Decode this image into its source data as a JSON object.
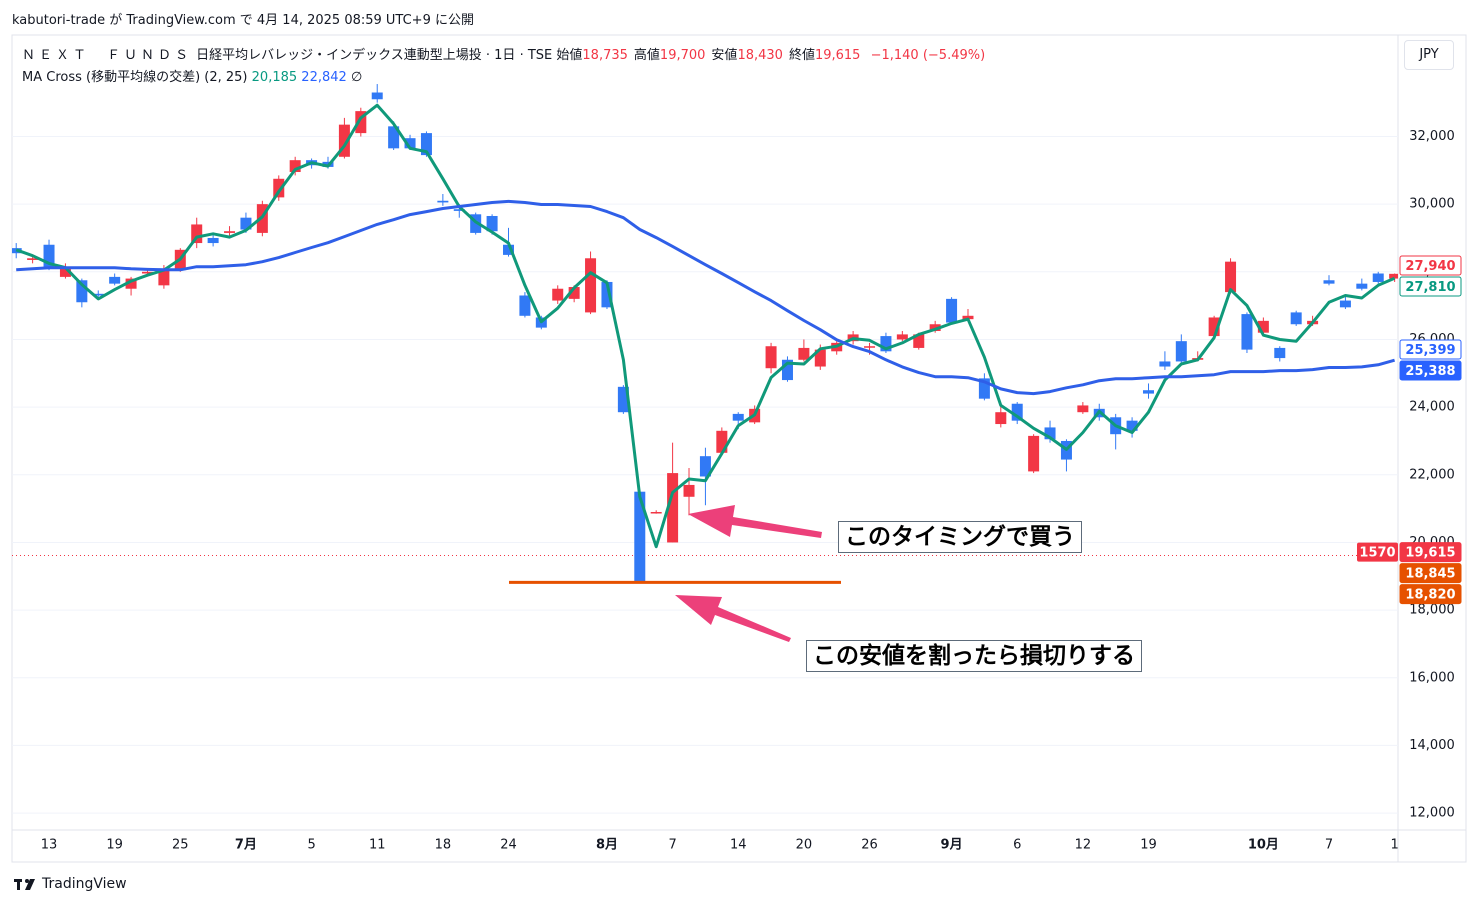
{
  "header": {
    "publisher": "kabutori-trade が TradingView.com で 4月 14, 2025 08:59 UTC+9 に公開",
    "symbol": "ＮＥＸＴ　ＦＵＮＤＳ",
    "symbol_desc": "日経平均レバレッジ・インデックス連動型上場投 · 1日 · TSE",
    "ohlc": [
      {
        "label": "始値",
        "value": "18,735"
      },
      {
        "label": "高値",
        "value": "19,700"
      },
      {
        "label": "安値",
        "value": "18,430"
      },
      {
        "label": "終値",
        "value": "19,615"
      }
    ],
    "change": "−1,140 (−5.49%)",
    "indicator": "MA Cross (移動平均線の交差) (2, 25)",
    "indicator_values": [
      "20,185",
      "22,842"
    ],
    "indicator_icon": "∅",
    "currency": "JPY"
  },
  "footer": "TradingView",
  "chart_data": {
    "type": "candlestick",
    "up_color": "#f23645",
    "down_color": "#3179f5",
    "categories": [
      null,
      null,
      "13",
      null,
      null,
      null,
      "19",
      null,
      null,
      null,
      "25",
      null,
      null,
      null,
      "7月",
      null,
      null,
      null,
      "5",
      null,
      null,
      null,
      "11",
      null,
      null,
      null,
      "18",
      null,
      null,
      null,
      "24",
      null,
      null,
      null,
      null,
      null,
      "8月",
      null,
      null,
      null,
      "7",
      null,
      null,
      null,
      "14",
      null,
      null,
      null,
      "20",
      null,
      null,
      null,
      "26",
      null,
      null,
      null,
      null,
      "9月",
      null,
      null,
      null,
      "6",
      null,
      null,
      null,
      "12",
      null,
      null,
      null,
      "19",
      null,
      null,
      null,
      null,
      null,
      null,
      "10月",
      null,
      null,
      null,
      "7",
      null,
      null,
      null,
      "1"
    ],
    "open": [
      28700,
      28350,
      28800,
      27850,
      27750,
      27350,
      27850,
      27500,
      27950,
      27600,
      28050,
      28850,
      29000,
      29150,
      29600,
      29150,
      30200,
      30950,
      31300,
      31250,
      31400,
      32100,
      33300,
      32300,
      31950,
      32100,
      30100,
      29850,
      29700,
      29650,
      28800,
      27300,
      26650,
      27150,
      27200,
      26800,
      27700,
      24600,
      21500,
      20900,
      20000,
      21350,
      22550,
      22650,
      23800,
      23550,
      25150,
      25400,
      25400,
      25200,
      25650,
      25950,
      25800,
      26100,
      26000,
      25750,
      26250,
      27200,
      26600,
      24850,
      23500,
      24100,
      22100,
      23400,
      23000,
      23850,
      23950,
      23700,
      23600,
      24500,
      25350,
      25950,
      25400,
      26100,
      27400,
      26750,
      26200,
      25750,
      26800,
      26450,
      27750,
      27150,
      27650,
      27950,
      27800
    ],
    "high": [
      28850,
      28500,
      28950,
      28250,
      27800,
      27450,
      27950,
      27850,
      28100,
      28200,
      28700,
      29600,
      29150,
      29350,
      29750,
      30100,
      30850,
      31400,
      31350,
      31400,
      32550,
      32850,
      33550,
      32450,
      32050,
      32150,
      30300,
      30000,
      29750,
      29700,
      29300,
      27400,
      26700,
      27600,
      27600,
      28600,
      27750,
      24650,
      21500,
      20950,
      22950,
      22200,
      22800,
      23400,
      23850,
      24050,
      25900,
      25500,
      26000,
      25850,
      26000,
      26250,
      25900,
      26200,
      26250,
      26200,
      26550,
      27250,
      26900,
      25000,
      24100,
      24150,
      23200,
      23600,
      23050,
      24150,
      24100,
      23800,
      23700,
      24700,
      25650,
      26150,
      25650,
      26700,
      28400,
      26800,
      26650,
      25800,
      26850,
      26700,
      27900,
      27300,
      27800,
      28000,
      27950
    ],
    "low": [
      28400,
      28250,
      28050,
      27800,
      26950,
      27200,
      27600,
      27300,
      27900,
      27500,
      28000,
      28700,
      28750,
      29050,
      29150,
      29050,
      30100,
      30850,
      31050,
      31050,
      31350,
      32000,
      33000,
      31600,
      31600,
      31400,
      29950,
      29600,
      29100,
      29100,
      28450,
      26650,
      26300,
      27050,
      27100,
      26750,
      26900,
      23800,
      18820,
      20850,
      20000,
      20800,
      21100,
      22600,
      23350,
      23500,
      25000,
      24750,
      25350,
      25100,
      25550,
      25850,
      25550,
      25600,
      25950,
      25700,
      26200,
      26450,
      26550,
      24200,
      23400,
      23500,
      22050,
      22950,
      22100,
      23800,
      23600,
      22750,
      23100,
      24250,
      25100,
      25250,
      25350,
      26000,
      27350,
      25600,
      26150,
      25350,
      26400,
      26400,
      27600,
      26900,
      27450,
      27650,
      27700
    ],
    "close": [
      28550,
      28400,
      28100,
      28150,
      27100,
      27300,
      27650,
      27800,
      28000,
      28100,
      28650,
      29400,
      28850,
      29200,
      29250,
      30000,
      30750,
      31300,
      31150,
      31100,
      32350,
      32750,
      33100,
      31650,
      31650,
      31450,
      30050,
      29800,
      29150,
      29200,
      28500,
      26700,
      26350,
      27500,
      27550,
      28400,
      26950,
      23850,
      18850,
      20900,
      22050,
      21700,
      21950,
      23300,
      23600,
      23950,
      25800,
      24800,
      25750,
      25700,
      25900,
      26150,
      25800,
      25650,
      26150,
      26150,
      26450,
      26500,
      26700,
      24250,
      23850,
      23600,
      23150,
      23050,
      22450,
      24050,
      23700,
      23200,
      23300,
      24400,
      25200,
      25350,
      25450,
      26650,
      28300,
      25700,
      26550,
      25450,
      26450,
      26550,
      27650,
      26950,
      27500,
      27700,
      27940
    ],
    "overlays": [
      {
        "color": "#10997a",
        "values": [
          28650,
          28475,
          28250,
          28125,
          27625,
          27200,
          27475,
          27725,
          27900,
          28050,
          28375,
          29025,
          29125,
          29025,
          29225,
          29625,
          30375,
          31025,
          31225,
          31125,
          31725,
          32550,
          32925,
          32375,
          31650,
          31550,
          30750,
          29925,
          29475,
          29175,
          28850,
          27600,
          26525,
          26925,
          27525,
          27975,
          27675,
          25400,
          21350,
          19875,
          21475,
          21875,
          21825,
          22625,
          23450,
          23775,
          24875,
          25300,
          25275,
          25725,
          25800,
          26025,
          25975,
          25725,
          25900,
          26150,
          26300,
          26475,
          26600,
          25475,
          24050,
          23725,
          23375,
          23100,
          22750,
          23250,
          23875,
          23450,
          23250,
          23850,
          24800,
          25275,
          25400,
          26050,
          27475,
          27000,
          26125,
          26000,
          25950,
          26500,
          27100,
          27300,
          27225,
          27600,
          27810
        ]
      },
      {
        "color": "#2f5fe8",
        "values": [
          28060,
          28090,
          28120,
          28120,
          28120,
          28120,
          28120,
          28090,
          28070,
          28060,
          28060,
          28150,
          28150,
          28180,
          28210,
          28300,
          28420,
          28570,
          28720,
          28860,
          29040,
          29220,
          29400,
          29540,
          29690,
          29780,
          29870,
          29930,
          29990,
          30050,
          30080,
          30050,
          29990,
          29990,
          29960,
          29930,
          29780,
          29600,
          29250,
          29010,
          28750,
          28480,
          28210,
          27950,
          27680,
          27410,
          27150,
          26850,
          26560,
          26290,
          25990,
          25790,
          25640,
          25400,
          25190,
          25020,
          24900,
          24900,
          24870,
          24750,
          24540,
          24430,
          24400,
          24460,
          24570,
          24660,
          24780,
          24840,
          24840,
          24870,
          24900,
          24900,
          24930,
          24960,
          25050,
          25050,
          25050,
          25080,
          25080,
          25110,
          25170,
          25170,
          25190,
          25250,
          25388
        ]
      }
    ],
    "ylim": [
      11500,
      35000
    ],
    "yticks": [
      {
        "value": 12000,
        "label": "12,000"
      },
      {
        "value": 14000,
        "label": "14,000"
      },
      {
        "value": 16000,
        "label": "16,000"
      },
      {
        "value": 18000,
        "label": "18,000"
      },
      {
        "value": 20000,
        "label": "20,000"
      },
      {
        "value": 22000,
        "label": "22,000"
      },
      {
        "value": 24000,
        "label": "24,000"
      },
      {
        "value": 26000,
        "label": "26,000"
      },
      {
        "value": 28000,
        "label": "28,000"
      },
      {
        "value": 30000,
        "label": "30,000"
      },
      {
        "value": 32000,
        "label": "32,000"
      }
    ],
    "grid": true,
    "price_line": {
      "value": 19615,
      "color": "#f23645"
    },
    "annotation_line": {
      "value": 18820,
      "color": "#e65100"
    },
    "price_labels": [
      {
        "value": 27940,
        "label": "27,940",
        "color": "#f23645",
        "style": "outline"
      },
      {
        "value": 27810,
        "label": "27,810",
        "color": "#089981",
        "style": "outline"
      },
      {
        "value": 25399,
        "label": "25,399",
        "color": "#2962ff",
        "style": "outline"
      },
      {
        "value": 25388,
        "label": "25,388",
        "color": "#2962ff",
        "style": "fill"
      },
      {
        "value": 19615,
        "label": "19,615",
        "tag": "1570",
        "color": "#f23645",
        "style": "fill"
      },
      {
        "value": 18845,
        "label": "18,845",
        "color": "#e65100",
        "style": "fill"
      },
      {
        "value": 18820,
        "label": "18,820",
        "color": "#e65100",
        "style": "fill"
      }
    ],
    "annotations": [
      {
        "text": "このタイミングで買う"
      },
      {
        "text": "この安値を割ったら損切りする"
      }
    ]
  }
}
